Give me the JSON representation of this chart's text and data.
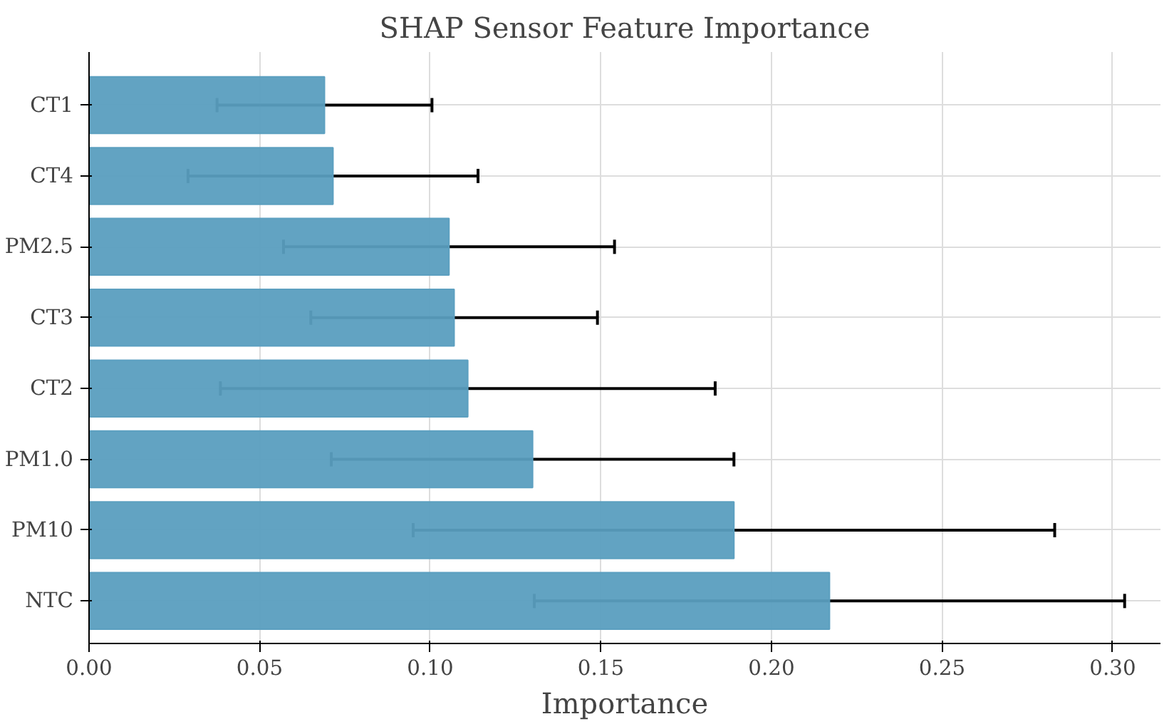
{
  "chart_data": {
    "type": "bar",
    "orientation": "horizontal",
    "title": "SHAP Sensor Feature Importance",
    "xlabel": "Importance",
    "categories": [
      "CT1",
      "CT4",
      "PM2.5",
      "CT3",
      "CT2",
      "PM1.0",
      "PM10",
      "NTC"
    ],
    "values": [
      0.069,
      0.0715,
      0.1055,
      0.107,
      0.111,
      0.13,
      0.189,
      0.217
    ],
    "errors": [
      0.0315,
      0.0425,
      0.0485,
      0.042,
      0.0725,
      0.059,
      0.094,
      0.0865
    ],
    "color": "#5a9ebf",
    "xlim": [
      0,
      0.314
    ],
    "xticks": [
      {
        "value": 0,
        "label": "0.00"
      },
      0.05,
      {
        "value": 0.1,
        "label": "0.10"
      },
      0.15,
      {
        "value": 0.2,
        "label": "0.20"
      },
      0.25,
      {
        "value": 0.3,
        "label": "0.30"
      }
    ],
    "grid": true
  }
}
